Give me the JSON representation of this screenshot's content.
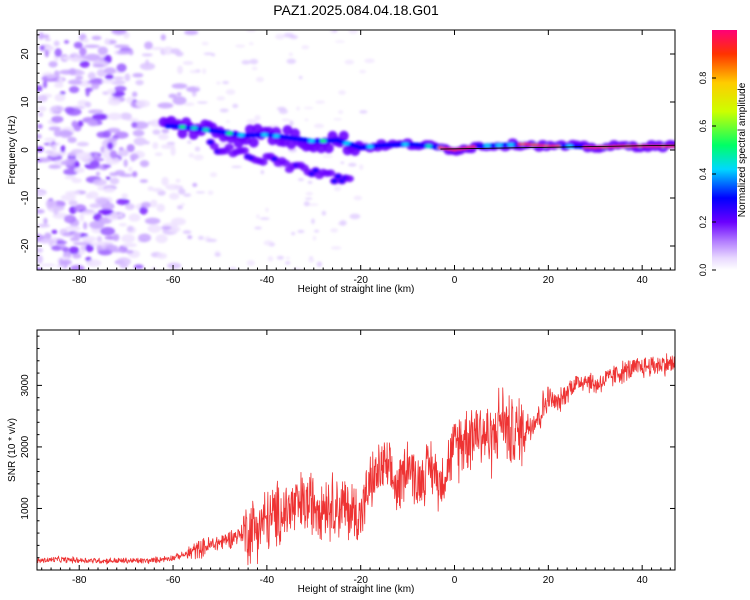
{
  "title": "PAZ1.2025.084.04.18.G01",
  "chart_data": [
    {
      "type": "heatmap",
      "xlabel": "Height of straight line (km)",
      "ylabel": "Frequency (Hz)",
      "xlim": [
        -89,
        47
      ],
      "ylim": [
        -25,
        25
      ],
      "xticks": [
        -80,
        -60,
        -40,
        -20,
        0,
        20,
        40
      ],
      "yticks": [
        -20,
        -10,
        0,
        10,
        20
      ],
      "colorbar": {
        "label": "Normalized spectral amplitude",
        "ticks": [
          "0.0",
          "0.2",
          "0.4",
          "0.6",
          "0.8"
        ],
        "range": [
          0,
          1
        ]
      },
      "ridge": {
        "x": [
          -60,
          -55,
          -50,
          -45,
          -40,
          -35,
          -30,
          -25,
          -20,
          -15,
          -10,
          -5,
          0,
          5,
          10,
          15,
          20,
          25,
          30,
          35,
          40,
          47
        ],
        "y": [
          5,
          4.5,
          3.8,
          3,
          3.2,
          2.5,
          1.8,
          2,
          0.5,
          1,
          1.2,
          0.8,
          0,
          0.8,
          1,
          1.2,
          0.8,
          0.8,
          0.5,
          0.8,
          0.8,
          0.8
        ]
      },
      "grid": false
    },
    {
      "type": "line",
      "xlabel": "Height of straight line (km)",
      "ylabel": "SNR (10 * v/v)",
      "xlim": [
        -89,
        47
      ],
      "ylim": [
        0,
        3900
      ],
      "xticks": [
        -80,
        -60,
        -40,
        -20,
        0,
        20,
        40
      ],
      "yticks": [
        1000,
        2000,
        3000
      ],
      "series": [
        {
          "color": "#ee3333",
          "x": [
            -89,
            -85,
            -80,
            -75,
            -70,
            -65,
            -60,
            -57,
            -55,
            -50,
            -45,
            -40,
            -35,
            -30,
            -25,
            -22,
            -20,
            -18,
            -15,
            -12,
            -10,
            -8,
            -5,
            -3,
            0,
            3,
            5,
            8,
            10,
            12,
            15,
            18,
            20,
            22,
            25,
            28,
            30,
            35,
            40,
            45,
            47
          ],
          "y": [
            150,
            170,
            160,
            150,
            150,
            150,
            200,
            260,
            330,
            450,
            600,
            800,
            1000,
            1100,
            1050,
            950,
            900,
            1400,
            1700,
            1300,
            1800,
            1400,
            1700,
            1400,
            2000,
            2200,
            2300,
            2100,
            2500,
            2200,
            2300,
            2500,
            2800,
            2700,
            3000,
            3100,
            3000,
            3200,
            3300,
            3350,
            3350
          ]
        }
      ],
      "grid": false
    }
  ]
}
